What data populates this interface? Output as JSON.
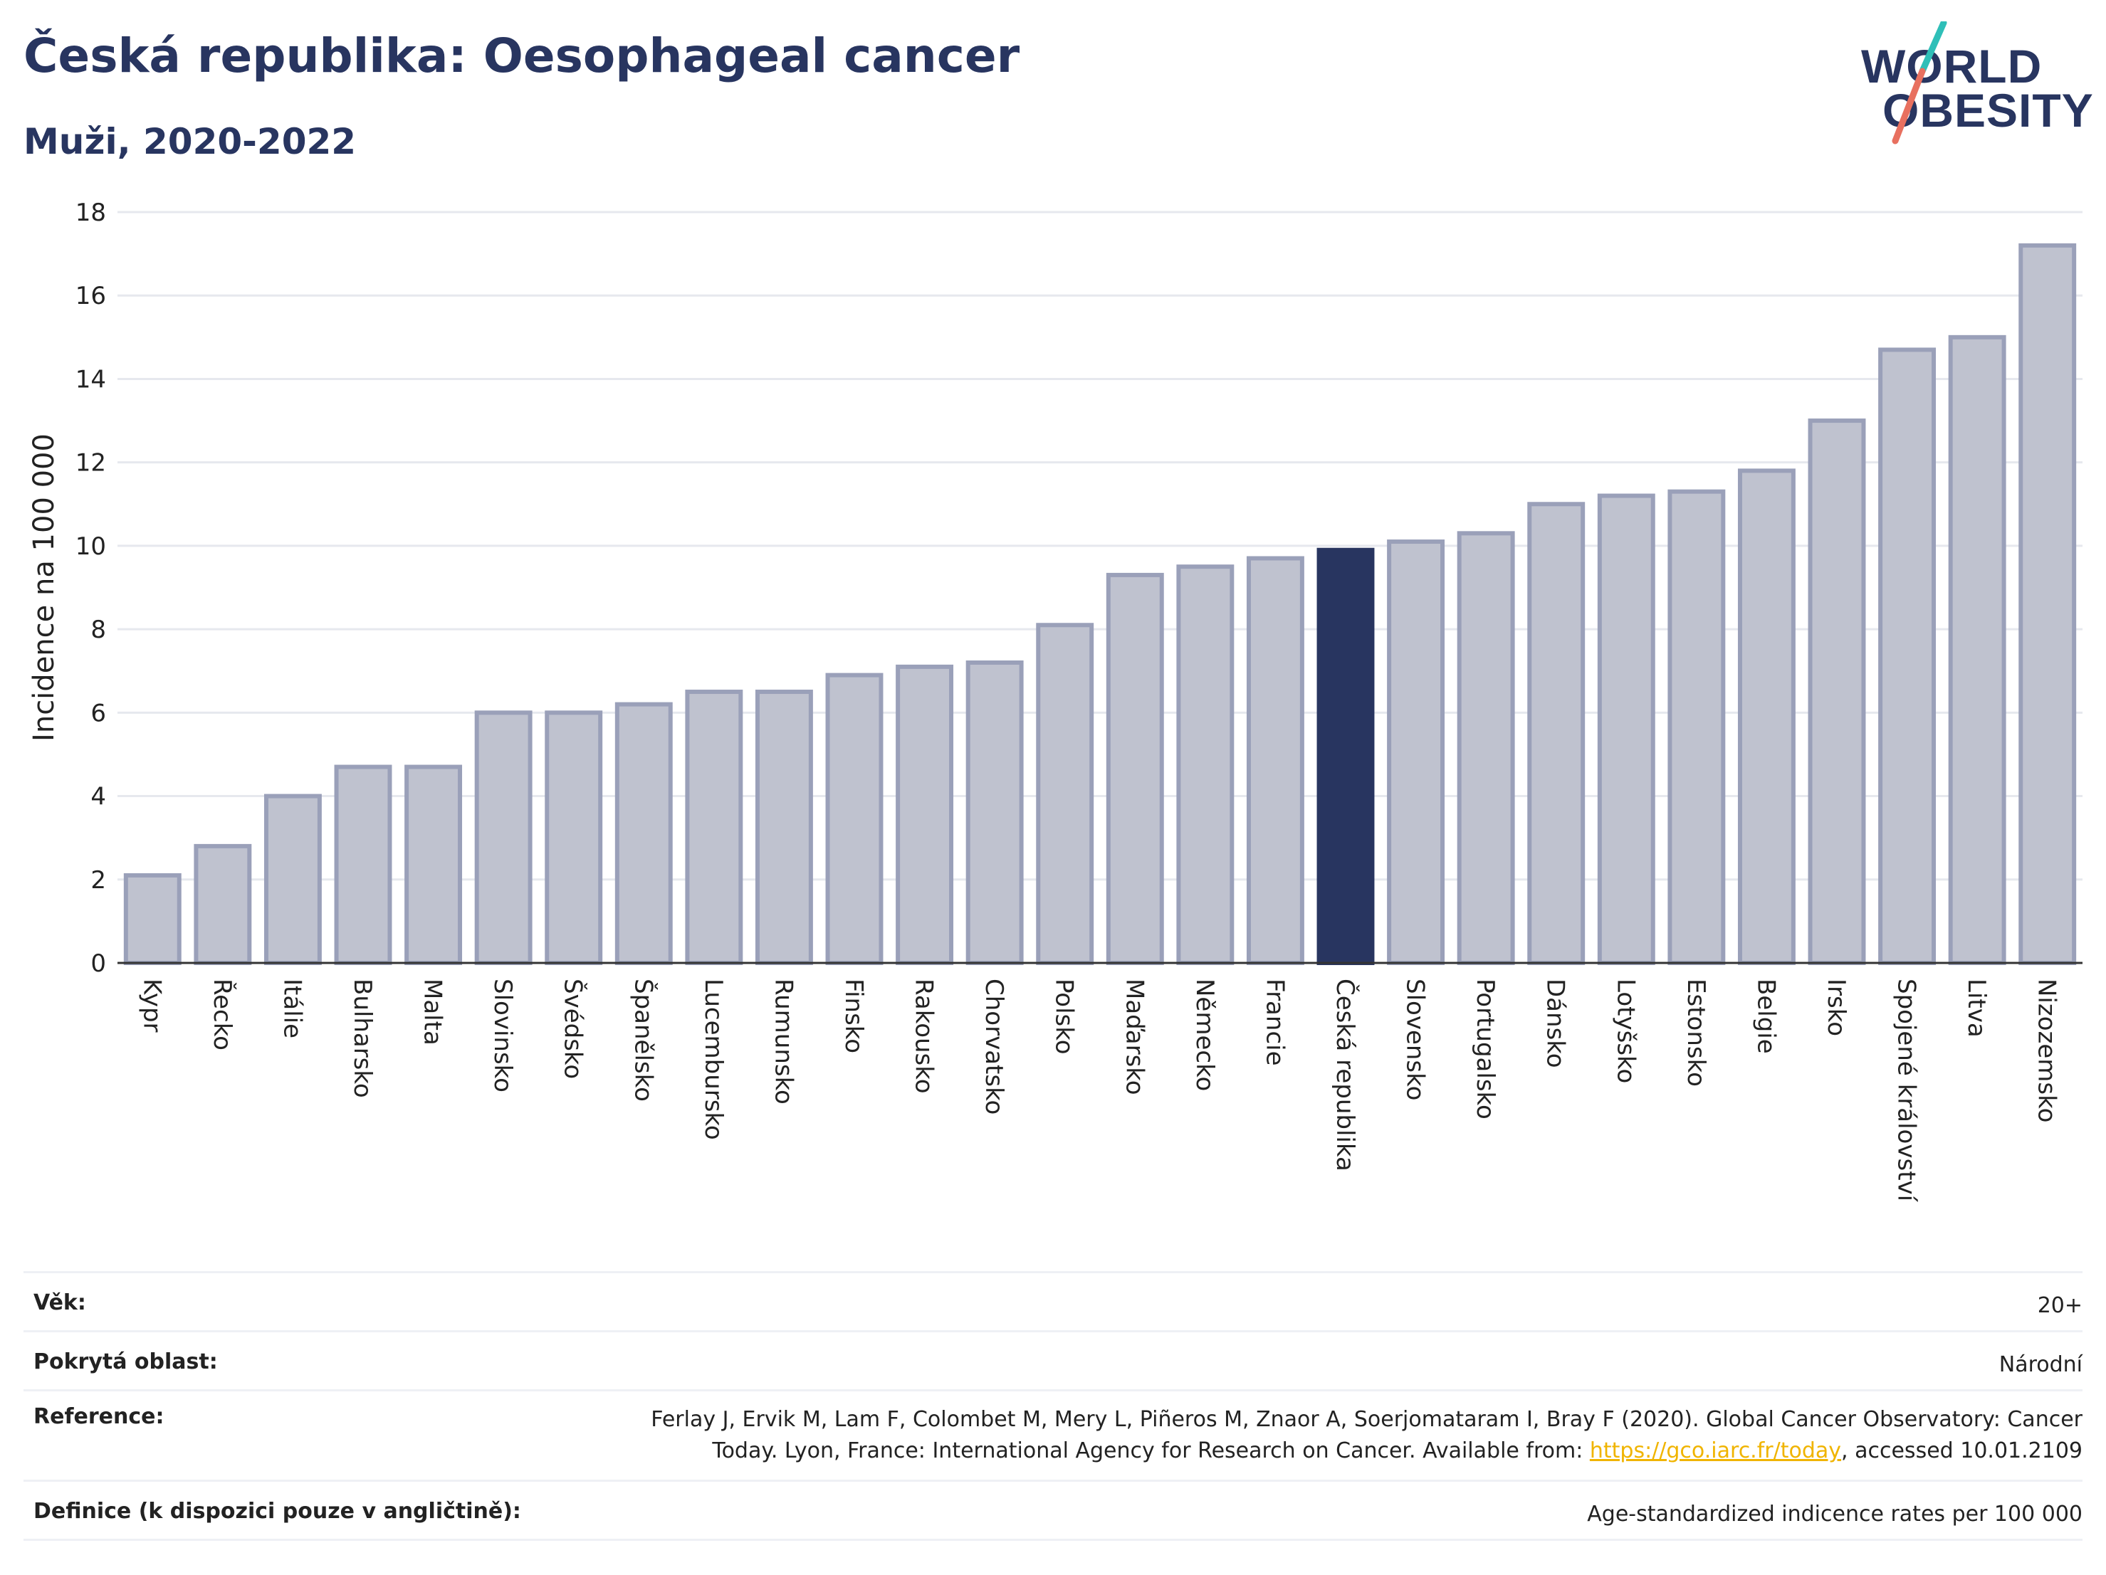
{
  "header": {
    "title": "Česká republika: Oesophageal cancer",
    "subtitle": "Muži, 2020-2022"
  },
  "logo": {
    "line1": "WORLD",
    "line2": "OBESITY",
    "slash_colors": [
      "#2fbfb8",
      "#e8705f"
    ]
  },
  "chart_data": {
    "type": "bar",
    "title": "",
    "xlabel": "",
    "ylabel": "Incidence na 100 000",
    "ylim": [
      0,
      18
    ],
    "yticks": [
      0,
      2,
      4,
      6,
      8,
      10,
      12,
      14,
      16,
      18
    ],
    "grid": true,
    "highlight": "Česká republika",
    "colors": {
      "bar": "#bfc2cf",
      "bar_border": "#9aa0b9",
      "highlight": "#283560",
      "grid": "#e6e8ee"
    },
    "categories": [
      "Kypr",
      "Řecko",
      "Itálie",
      "Bulharsko",
      "Malta",
      "Slovinsko",
      "Švédsko",
      "Španělsko",
      "Lucembursko",
      "Rumunsko",
      "Finsko",
      "Rakousko",
      "Chorvatsko",
      "Polsko",
      "Maďarsko",
      "Německo",
      "Francie",
      "Česká republika",
      "Slovensko",
      "Portugalsko",
      "Dánsko",
      "Lotyšsko",
      "Estonsko",
      "Belgie",
      "Irsko",
      "Spojené království",
      "Litva",
      "Nizozemsko"
    ],
    "values": [
      2.1,
      2.8,
      4.0,
      4.7,
      4.7,
      6.0,
      6.0,
      6.2,
      6.5,
      6.5,
      6.9,
      7.1,
      7.2,
      8.1,
      9.3,
      9.5,
      9.7,
      9.9,
      10.1,
      10.3,
      11.0,
      11.2,
      11.3,
      11.8,
      13.0,
      14.7,
      15.0,
      17.2
    ]
  },
  "info": {
    "age_label": "Věk:",
    "age_value": "20+",
    "area_label": "Pokrytá oblast:",
    "area_value": "Národní",
    "ref_label": "Reference:",
    "ref_text_1": "Ferlay J, Ervik M, Lam F, Colombet M, Mery L, Piñeros M, Znaor A, Soerjomataram I, Bray F (2020). Global Cancer Observatory: Cancer",
    "ref_text_2a": "Today. Lyon, France: International Agency for Research on Cancer. Available from: ",
    "ref_link": "https://gco.iarc.fr/today",
    "ref_text_2b": ", accessed 10.01.2109",
    "def_label": "Definice (k dispozici pouze v angličtině):",
    "def_value": "Age-standardized indicence rates per 100 000"
  }
}
